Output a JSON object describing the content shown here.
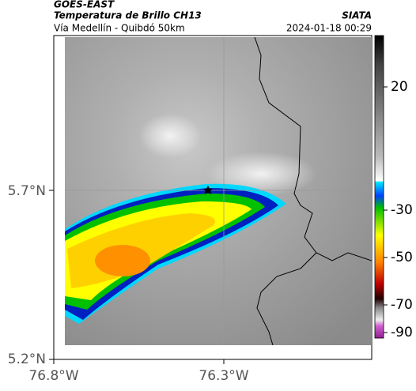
{
  "header": {
    "satellite": "GOES-EAST",
    "title": "Temperatura de Brillo CH13",
    "subtitle": "Vía Medellín - Quibdó 50km",
    "source": "SIATA",
    "datetime": "2024-01-18 00:29"
  },
  "map": {
    "lat_ticks": [
      "5.7°N",
      "5.2°N"
    ],
    "lon_ticks": [
      "76.8°W",
      "76.3°W"
    ]
  },
  "colorbar": {
    "ticks": [
      20,
      -30,
      -50,
      -70,
      -90
    ]
  }
}
